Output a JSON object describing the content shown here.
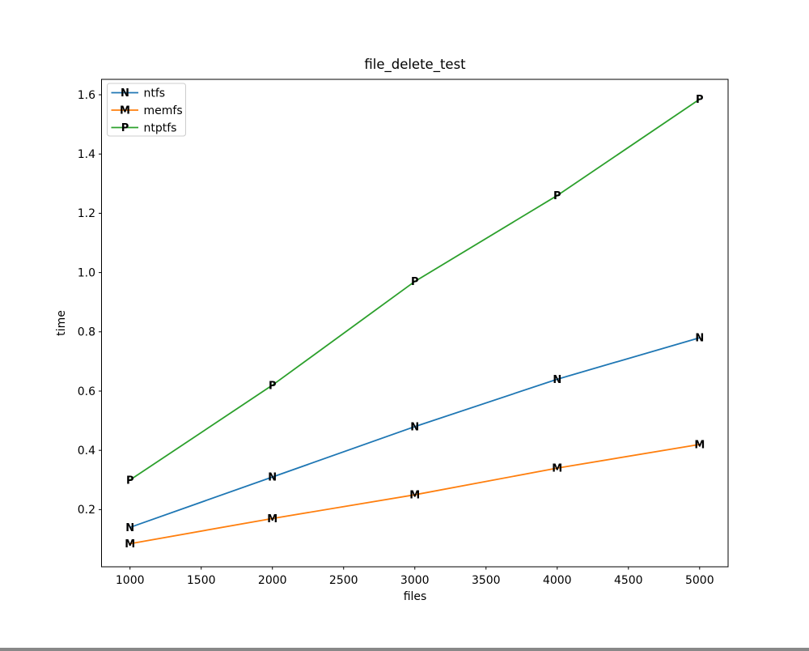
{
  "figure": {
    "background": "#ffffff",
    "axes_edge_color": "#000000"
  },
  "chart_data": {
    "type": "line",
    "title": "file_delete_test",
    "xlabel": "files",
    "ylabel": "time",
    "x": [
      1000,
      2000,
      3000,
      4000,
      5000
    ],
    "series": [
      {
        "name": "ntfs",
        "marker": "N",
        "color": "#1f77b4",
        "values": [
          0.14,
          0.31,
          0.48,
          0.64,
          0.78
        ]
      },
      {
        "name": "memfs",
        "marker": "M",
        "color": "#ff7f0e",
        "values": [
          0.085,
          0.17,
          0.25,
          0.34,
          0.42
        ]
      },
      {
        "name": "ntptfs",
        "marker": "P",
        "color": "#2ca02c",
        "values": [
          0.3,
          0.62,
          0.97,
          1.26,
          1.585
        ]
      }
    ],
    "xticks": [
      1000,
      1500,
      2000,
      2500,
      3000,
      3500,
      4000,
      4500,
      5000
    ],
    "yticks": [
      "0.2",
      "0.4",
      "0.6",
      "0.8",
      "1.0",
      "1.2",
      "1.4",
      "1.6"
    ],
    "xlim": [
      800,
      5200
    ],
    "ylim": [
      0.007,
      1.652
    ],
    "grid": false,
    "legend_position": "upper left"
  }
}
